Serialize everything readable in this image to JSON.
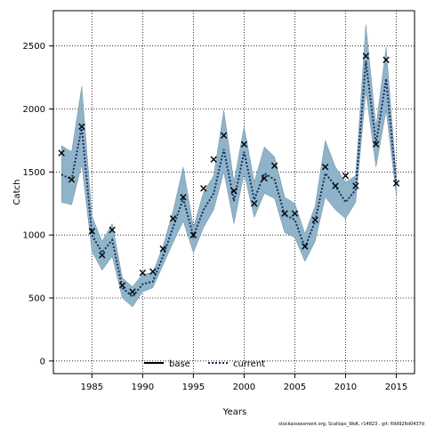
{
  "chart_data": {
    "type": "line",
    "xlabel": "Years",
    "ylabel": "Catch",
    "xlim": [
      1981.2,
      2016.8
    ],
    "ylim": [
      -100,
      2780
    ],
    "xticks": [
      1985,
      1990,
      1995,
      2000,
      2005,
      2010,
      2015
    ],
    "yticks": [
      0,
      500,
      1000,
      1500,
      2000,
      2500
    ],
    "grid": true,
    "legend_position": "bottom-center",
    "colors": {
      "band": "#8fb4c9",
      "band_edge": "#6d8fa3",
      "current": "#1a2a5e",
      "base": "#000000",
      "observed": "#000000"
    },
    "x": [
      1982,
      1983,
      1984,
      1985,
      1986,
      1987,
      1988,
      1989,
      1990,
      1991,
      1992,
      1993,
      1994,
      1995,
      1996,
      1997,
      1998,
      1999,
      2000,
      2001,
      2002,
      2003,
      2004,
      2005,
      2006,
      2007,
      2008,
      2009,
      2010,
      2011,
      2012,
      2013,
      2014,
      2015
    ],
    "observed": [
      1650,
      1440,
      1860,
      1030,
      840,
      1040,
      600,
      550,
      700,
      710,
      890,
      1130,
      1300,
      1000,
      1370,
      1600,
      1790,
      1350,
      1720,
      1250,
      1450,
      1550,
      1170,
      1170,
      910,
      1120,
      1540,
      1390,
      1470,
      1390,
      2420,
      1720,
      2390,
      1410
    ],
    "series": [
      {
        "name": "current",
        "values": [
          1480,
          1440,
          1860,
          1000,
          860,
          960,
          580,
          510,
          610,
          630,
          830,
          1060,
          1290,
          990,
          1200,
          1330,
          1680,
          1270,
          1660,
          1280,
          1490,
          1440,
          1160,
          1120,
          900,
          1110,
          1490,
          1390,
          1260,
          1360,
          2380,
          1720,
          2240,
          1400
        ]
      }
    ],
    "band": {
      "lower": [
        1260,
        1240,
        1560,
        870,
        720,
        830,
        500,
        430,
        550,
        580,
        760,
        940,
        1110,
        860,
        1060,
        1200,
        1500,
        1090,
        1490,
        1140,
        1330,
        1290,
        1020,
        980,
        790,
        950,
        1300,
        1200,
        1130,
        1260,
        2140,
        1540,
        1990,
        1320
      ],
      "upper": [
        1710,
        1660,
        2180,
        1150,
        950,
        1090,
        660,
        590,
        690,
        700,
        910,
        1190,
        1540,
        1060,
        1340,
        1470,
        1990,
        1420,
        1860,
        1420,
        1700,
        1620,
        1300,
        1250,
        1010,
        1230,
        1750,
        1540,
        1420,
        1470,
        2670,
        1860,
        2490,
        1460
      ]
    },
    "legend": [
      "base",
      "current"
    ]
  },
  "footer": "stockassessment.org, Scallops_WoK, r14823 , git: 69d926d0437d"
}
